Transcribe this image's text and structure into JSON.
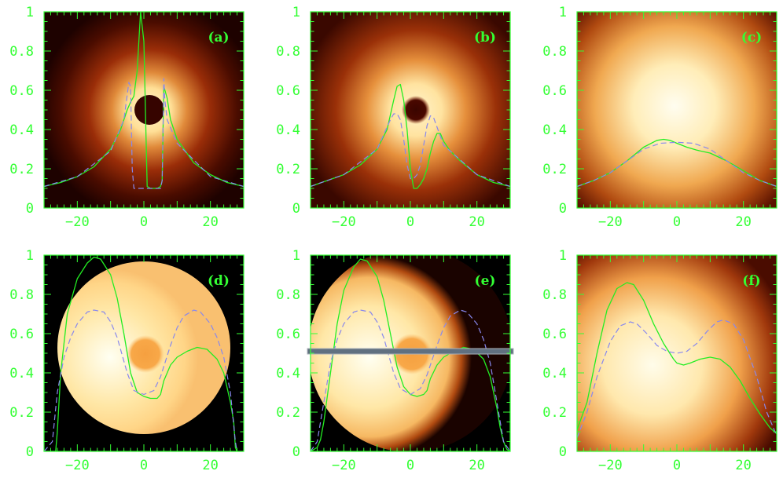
{
  "colors": {
    "axis": "#33ff33",
    "solid_curve": "#22ee22",
    "dashed_curve": "#8888ee",
    "marker_bar": "#607080"
  },
  "chart_data": [
    {
      "panel": "(a)",
      "type": "line",
      "xlim": [
        -30,
        30
      ],
      "ylim": [
        0,
        1
      ],
      "xticks": [
        -20,
        0,
        20
      ],
      "yticks": [
        0,
        0.2,
        0.4,
        0.6,
        0.8,
        1
      ],
      "image": "compact ring around a dark central disk on a dark background",
      "series": [
        {
          "style": "solid",
          "x": [
            -30,
            -25,
            -20,
            -15,
            -10,
            -7,
            -5,
            -4,
            -3,
            -2,
            -1,
            0,
            1,
            2,
            3,
            4,
            5,
            5.5,
            6,
            7,
            8,
            10,
            15,
            20,
            25,
            30
          ],
          "y": [
            0.11,
            0.13,
            0.16,
            0.21,
            0.3,
            0.4,
            0.5,
            0.54,
            0.57,
            0.7,
            1.0,
            0.85,
            0.11,
            0.1,
            0.1,
            0.1,
            0.11,
            0.14,
            0.62,
            0.56,
            0.45,
            0.35,
            0.23,
            0.17,
            0.13,
            0.11
          ]
        },
        {
          "style": "dashed",
          "x": [
            -30,
            -20,
            -10,
            -6,
            -4.5,
            -4,
            -3.5,
            -3,
            0,
            3,
            5,
            5.5,
            6,
            6.3,
            7,
            10,
            20,
            30
          ],
          "y": [
            0.11,
            0.16,
            0.29,
            0.45,
            0.64,
            0.62,
            0.2,
            0.1,
            0.1,
            0.1,
            0.1,
            0.14,
            0.66,
            0.55,
            0.45,
            0.33,
            0.16,
            0.11
          ]
        }
      ]
    },
    {
      "panel": "(b)",
      "type": "line",
      "xlim": [
        -30,
        30
      ],
      "ylim": [
        0,
        1
      ],
      "xticks": [
        -20,
        0,
        20
      ],
      "yticks": [
        0,
        0.2,
        0.4,
        0.6,
        0.8,
        1
      ],
      "image": "broader ring around a smaller dark disk",
      "series": [
        {
          "style": "solid",
          "x": [
            -30,
            -25,
            -20,
            -15,
            -10,
            -7,
            -5,
            -4,
            -3,
            -2,
            -1,
            0,
            1,
            2,
            3,
            4,
            5,
            6,
            7,
            8,
            9,
            10,
            12,
            15,
            20,
            25,
            30
          ],
          "y": [
            0.11,
            0.14,
            0.17,
            0.22,
            0.3,
            0.4,
            0.55,
            0.62,
            0.63,
            0.55,
            0.4,
            0.2,
            0.1,
            0.1,
            0.12,
            0.15,
            0.2,
            0.28,
            0.34,
            0.38,
            0.38,
            0.34,
            0.29,
            0.24,
            0.17,
            0.13,
            0.11
          ]
        },
        {
          "style": "dashed",
          "x": [
            -30,
            -20,
            -10,
            -6,
            -5,
            -4,
            -3,
            -2,
            -1,
            0,
            1,
            2,
            3,
            4,
            5,
            6,
            7,
            10,
            20,
            30
          ],
          "y": [
            0.11,
            0.17,
            0.3,
            0.45,
            0.48,
            0.48,
            0.45,
            0.35,
            0.22,
            0.15,
            0.15,
            0.17,
            0.22,
            0.32,
            0.42,
            0.47,
            0.46,
            0.32,
            0.17,
            0.11
          ]
        }
      ]
    },
    {
      "panel": "(c)",
      "type": "line",
      "xlim": [
        -30,
        30
      ],
      "ylim": [
        0,
        1
      ],
      "xticks": [
        -20,
        0,
        20
      ],
      "yticks": [
        0,
        0.2,
        0.4,
        0.6,
        0.8,
        1
      ],
      "image": "diffuse bright blob",
      "series": [
        {
          "style": "solid",
          "x": [
            -30,
            -25,
            -20,
            -15,
            -10,
            -6,
            -4,
            -2,
            0,
            3,
            6,
            10,
            15,
            20,
            25,
            30
          ],
          "y": [
            0.11,
            0.14,
            0.18,
            0.24,
            0.31,
            0.345,
            0.35,
            0.345,
            0.33,
            0.31,
            0.295,
            0.28,
            0.24,
            0.19,
            0.14,
            0.11
          ]
        },
        {
          "style": "dashed",
          "x": [
            -30,
            -25,
            -20,
            -15,
            -10,
            -5,
            0,
            5,
            10,
            15,
            20,
            25,
            30
          ],
          "y": [
            0.11,
            0.14,
            0.18,
            0.24,
            0.3,
            0.33,
            0.335,
            0.33,
            0.3,
            0.24,
            0.18,
            0.14,
            0.11
          ]
        }
      ]
    },
    {
      "panel": "(d)",
      "type": "line",
      "xlim": [
        -30,
        30
      ],
      "ylim": [
        0,
        1
      ],
      "xticks": [
        -20,
        0,
        20
      ],
      "yticks": [
        0,
        0.2,
        0.4,
        0.6,
        0.8,
        1
      ],
      "image": "sharp-edged bright disk with a darker central spot",
      "series": [
        {
          "style": "solid",
          "x": [
            -30,
            -26.5,
            -26,
            -25,
            -23,
            -20,
            -17,
            -15,
            -13,
            -10,
            -8,
            -6,
            -4,
            -2,
            0,
            2,
            4,
            5,
            6,
            8,
            10,
            13,
            16,
            19,
            22,
            24,
            26,
            27,
            27.5,
            28
          ],
          "y": [
            0,
            0,
            0.1,
            0.4,
            0.7,
            0.88,
            0.96,
            0.99,
            0.98,
            0.9,
            0.78,
            0.6,
            0.4,
            0.3,
            0.28,
            0.27,
            0.27,
            0.29,
            0.36,
            0.44,
            0.48,
            0.51,
            0.53,
            0.52,
            0.47,
            0.4,
            0.25,
            0.15,
            0.02,
            0
          ]
        },
        {
          "style": "dashed",
          "x": [
            -30,
            -27.5,
            -26,
            -24,
            -22,
            -20,
            -17,
            -15,
            -12,
            -10,
            -8,
            -5,
            -3,
            0,
            3,
            5,
            8,
            10,
            12,
            15,
            17,
            20,
            22,
            24,
            26,
            27.5,
            28
          ],
          "y": [
            0,
            0.05,
            0.3,
            0.48,
            0.58,
            0.65,
            0.71,
            0.72,
            0.71,
            0.66,
            0.58,
            0.4,
            0.31,
            0.29,
            0.31,
            0.38,
            0.54,
            0.63,
            0.69,
            0.72,
            0.71,
            0.65,
            0.58,
            0.48,
            0.3,
            0.05,
            0
          ]
        }
      ]
    },
    {
      "panel": "(e)",
      "type": "line",
      "xlim": [
        -30,
        30
      ],
      "ylim": [
        0,
        1
      ],
      "xticks": [
        -20,
        0,
        20
      ],
      "yticks": [
        0,
        0.2,
        0.4,
        0.6,
        0.8,
        1
      ],
      "image": "bright disk with soft edge and darker central spot; horizontal grey bar at y = 0.51",
      "marker_line_y": 0.51,
      "series": [
        {
          "style": "solid",
          "x": [
            -30,
            -28,
            -27,
            -26,
            -24,
            -22,
            -20,
            -17,
            -15,
            -13,
            -10,
            -8,
            -6,
            -4,
            -2,
            0,
            2,
            4,
            5,
            6,
            8,
            10,
            13,
            16,
            19,
            22,
            24,
            26,
            27,
            28,
            29,
            30
          ],
          "y": [
            0,
            0.02,
            0.06,
            0.15,
            0.4,
            0.65,
            0.82,
            0.94,
            0.98,
            0.97,
            0.89,
            0.77,
            0.6,
            0.43,
            0.33,
            0.29,
            0.28,
            0.29,
            0.31,
            0.37,
            0.44,
            0.48,
            0.51,
            0.53,
            0.52,
            0.47,
            0.38,
            0.22,
            0.12,
            0.05,
            0.01,
            0
          ]
        },
        {
          "style": "dashed",
          "x": [
            -30,
            -28,
            -26,
            -24,
            -22,
            -20,
            -17,
            -15,
            -12,
            -10,
            -8,
            -5,
            -3,
            0,
            3,
            5,
            8,
            10,
            12,
            15,
            17,
            20,
            22,
            24,
            26,
            28,
            30
          ],
          "y": [
            0,
            0.05,
            0.25,
            0.45,
            0.57,
            0.65,
            0.71,
            0.72,
            0.71,
            0.66,
            0.58,
            0.4,
            0.32,
            0.29,
            0.32,
            0.39,
            0.54,
            0.63,
            0.69,
            0.72,
            0.71,
            0.65,
            0.57,
            0.45,
            0.25,
            0.05,
            0
          ]
        }
      ]
    },
    {
      "panel": "(f)",
      "type": "line",
      "xlim": [
        -30,
        30
      ],
      "ylim": [
        0,
        1
      ],
      "xticks": [
        -20,
        0,
        20
      ],
      "yticks": [
        0,
        0.2,
        0.4,
        0.6,
        0.8,
        1
      ],
      "image": "diffuse bright blob with slightly darker center",
      "series": [
        {
          "style": "solid",
          "x": [
            -30,
            -27,
            -24,
            -21,
            -18,
            -15,
            -13,
            -10,
            -7,
            -4,
            -1,
            0,
            2,
            4,
            7,
            10,
            13,
            16,
            19,
            22,
            25,
            28,
            30
          ],
          "y": [
            0.11,
            0.25,
            0.5,
            0.72,
            0.83,
            0.86,
            0.85,
            0.77,
            0.65,
            0.55,
            0.47,
            0.45,
            0.44,
            0.45,
            0.47,
            0.48,
            0.47,
            0.43,
            0.36,
            0.27,
            0.19,
            0.12,
            0.09
          ]
        },
        {
          "style": "dashed",
          "x": [
            -30,
            -27,
            -24,
            -20,
            -17,
            -14,
            -12,
            -9,
            -6,
            -3,
            0,
            3,
            6,
            9,
            12,
            14,
            17,
            20,
            24,
            27,
            30
          ],
          "y": [
            0.07,
            0.2,
            0.38,
            0.56,
            0.64,
            0.66,
            0.65,
            0.6,
            0.54,
            0.51,
            0.5,
            0.51,
            0.55,
            0.61,
            0.66,
            0.67,
            0.65,
            0.57,
            0.38,
            0.2,
            0.08
          ]
        }
      ]
    }
  ]
}
